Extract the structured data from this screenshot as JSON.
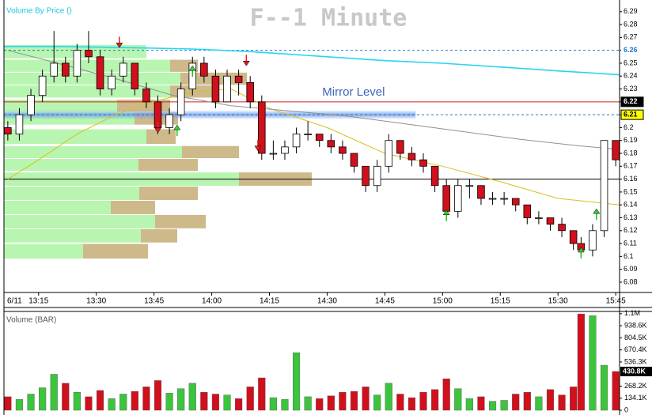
{
  "chart_data": {
    "type": "candlestick",
    "title": "F--1 Minute",
    "vbp_label": "Volume By Price ()",
    "volume_label": "Volume (BAR)",
    "date_label": "6/11",
    "xlim": [
      786,
      946
    ],
    "xticks": [
      {
        "value": 795,
        "label": "13:15"
      },
      {
        "value": 810,
        "label": "13:30"
      },
      {
        "value": 825,
        "label": "13:45"
      },
      {
        "value": 840,
        "label": "14:00"
      },
      {
        "value": 855,
        "label": "14:15"
      },
      {
        "value": 870,
        "label": "14:30"
      },
      {
        "value": 885,
        "label": "14:45"
      },
      {
        "value": 900,
        "label": "15:00"
      },
      {
        "value": 915,
        "label": "15:15"
      },
      {
        "value": 930,
        "label": "15:30"
      },
      {
        "value": 945,
        "label": "15:45"
      }
    ],
    "ylim": [
      6.072,
      6.296
    ],
    "yticks": [
      6.08,
      6.09,
      6.1,
      6.11,
      6.12,
      6.13,
      6.14,
      6.15,
      6.16,
      6.17,
      6.18,
      6.19,
      6.2,
      6.21,
      6.22,
      6.23,
      6.24,
      6.25,
      6.26,
      6.27,
      6.28,
      6.29
    ],
    "up_color": "#ffffff",
    "down_color": "#d0101c",
    "x": [
      787,
      790,
      793,
      796,
      799,
      802,
      805,
      808,
      811,
      814,
      817,
      820,
      823,
      826,
      829,
      832,
      835,
      838,
      841,
      844,
      847,
      850,
      853,
      856,
      859,
      862,
      865,
      868,
      871,
      874,
      877,
      880,
      883,
      886,
      889,
      892,
      895,
      898,
      901,
      904,
      907,
      910,
      913,
      916,
      919,
      922,
      925,
      928,
      931,
      934,
      936,
      939,
      942,
      945
    ],
    "open": [
      6.2,
      6.195,
      6.21,
      6.225,
      6.24,
      6.25,
      6.24,
      6.26,
      6.255,
      6.23,
      6.24,
      6.25,
      6.23,
      6.22,
      6.2,
      6.21,
      6.23,
      6.25,
      6.24,
      6.22,
      6.24,
      6.235,
      6.22,
      6.18,
      6.18,
      6.185,
      6.195,
      6.195,
      6.19,
      6.185,
      6.18,
      6.17,
      6.155,
      6.17,
      6.19,
      6.18,
      6.175,
      6.17,
      6.155,
      6.135,
      6.155,
      6.155,
      6.145,
      6.145,
      6.145,
      6.14,
      6.13,
      6.13,
      6.125,
      6.12,
      6.11,
      6.105,
      6.12,
      6.19
    ],
    "high": [
      6.205,
      6.215,
      6.23,
      6.245,
      6.275,
      6.255,
      6.265,
      6.275,
      6.26,
      6.245,
      6.255,
      6.25,
      6.235,
      6.225,
      6.215,
      6.235,
      6.255,
      6.255,
      6.245,
      6.245,
      6.245,
      6.24,
      6.225,
      6.19,
      6.19,
      6.2,
      6.205,
      6.195,
      6.195,
      6.19,
      6.18,
      6.17,
      6.175,
      6.195,
      6.19,
      6.185,
      6.18,
      6.17,
      6.16,
      6.16,
      6.16,
      6.155,
      6.15,
      6.15,
      6.145,
      6.14,
      6.135,
      6.13,
      6.13,
      6.12,
      6.115,
      6.125,
      6.19,
      6.19
    ],
    "low": [
      6.19,
      6.19,
      6.205,
      6.22,
      6.235,
      6.235,
      6.235,
      6.25,
      6.225,
      6.225,
      6.235,
      6.225,
      6.215,
      6.195,
      6.195,
      6.205,
      6.225,
      6.235,
      6.215,
      6.22,
      6.225,
      6.215,
      6.175,
      6.175,
      6.175,
      6.18,
      6.19,
      6.185,
      6.18,
      6.175,
      6.165,
      6.15,
      6.15,
      6.165,
      6.175,
      6.17,
      6.165,
      6.15,
      6.13,
      6.13,
      6.145,
      6.14,
      6.14,
      6.14,
      6.135,
      6.125,
      6.125,
      6.12,
      6.115,
      6.105,
      6.1,
      6.1,
      6.115,
      6.17
    ],
    "close": [
      6.195,
      6.21,
      6.225,
      6.24,
      6.25,
      6.24,
      6.26,
      6.255,
      6.23,
      6.24,
      6.25,
      6.23,
      6.22,
      6.2,
      6.21,
      6.23,
      6.25,
      6.24,
      6.22,
      6.24,
      6.235,
      6.22,
      6.18,
      6.18,
      6.185,
      6.195,
      6.195,
      6.19,
      6.185,
      6.18,
      6.17,
      6.155,
      6.17,
      6.19,
      6.18,
      6.175,
      6.17,
      6.155,
      6.135,
      6.155,
      6.155,
      6.145,
      6.145,
      6.145,
      6.14,
      6.13,
      6.13,
      6.125,
      6.12,
      6.11,
      6.105,
      6.12,
      6.19,
      6.175
    ],
    "volume": [
      150000,
      120000,
      180000,
      250000,
      400000,
      300000,
      200000,
      150000,
      220000,
      130000,
      180000,
      210000,
      260000,
      330000,
      190000,
      240000,
      300000,
      200000,
      180000,
      170000,
      130000,
      260000,
      360000,
      140000,
      120000,
      640000,
      150000,
      130000,
      160000,
      200000,
      210000,
      260000,
      170000,
      300000,
      180000,
      140000,
      200000,
      230000,
      350000,
      240000,
      130000,
      150000,
      100000,
      110000,
      180000,
      200000,
      150000,
      230000,
      170000,
      260000,
      1070000,
      1050000,
      500000,
      430800
    ],
    "volume_ylim": [
      0,
      1080000
    ],
    "volume_yticks": [
      0,
      {
        "value": 134100,
        "label": "134.1K"
      },
      {
        "value": 268200,
        "label": "268.2K"
      },
      {
        "value": 536300,
        "label": "536.3K"
      },
      {
        "value": 670400,
        "label": "670.4K"
      },
      {
        "value": 804500,
        "label": "804.5K"
      },
      {
        "value": 938600,
        "label": "938.6K"
      },
      {
        "value": 1072700,
        "label": "1.1M"
      }
    ],
    "volume_up_color": "#3cc43c",
    "volume_down_color": "#d0101c",
    "last_volume": {
      "value": 430800,
      "label": "430.8K"
    },
    "vbp": {
      "prices": [
        6.259,
        6.248,
        6.238,
        6.228,
        6.217,
        6.207,
        6.193,
        6.181,
        6.171,
        6.16,
        6.149,
        6.138,
        6.127,
        6.116,
        6.104
      ],
      "up": [
        180,
        210,
        223,
        210,
        143,
        165,
        180,
        225,
        170,
        297,
        171,
        135,
        191,
        173,
        100
      ],
      "down": [
        0,
        35,
        84,
        60,
        67,
        55,
        37,
        72,
        75,
        92,
        74,
        56,
        64,
        46,
        82
      ],
      "xlim": [
        0,
        778
      ],
      "up_color": "#b8f5b0",
      "down_color": "#cdb98a"
    },
    "lines": [
      {
        "color": "#27d6ee",
        "x": [
          786,
          800,
          820,
          835,
          850,
          870,
          885,
          900,
          915,
          930,
          946
        ],
        "values": [
          6.263,
          6.263,
          6.262,
          6.261,
          6.259,
          6.255,
          6.252,
          6.25,
          6.247,
          6.244,
          6.241
        ]
      },
      {
        "color": "#d8c020",
        "x": [
          787,
          795,
          805,
          815,
          825,
          835,
          845,
          855,
          870,
          885,
          900,
          915,
          930,
          946
        ],
        "values": [
          6.16,
          6.175,
          6.195,
          6.21,
          6.22,
          6.228,
          6.23,
          6.215,
          6.2,
          6.18,
          6.17,
          6.158,
          6.145,
          6.14
        ]
      },
      {
        "color": "#909090",
        "x": [
          787,
          800,
          815,
          830,
          845,
          860,
          875,
          890,
          905,
          920,
          935,
          946
        ],
        "values": [
          6.26,
          6.25,
          6.238,
          6.225,
          6.217,
          6.213,
          6.209,
          6.203,
          6.197,
          6.191,
          6.186,
          6.183
        ]
      }
    ],
    "levels": [
      {
        "price": 6.26,
        "color": "#1e78d0",
        "style": "dashed",
        "label_bg": "#ffffff"
      },
      {
        "price": 6.22,
        "color": "#d02020",
        "style": "solid",
        "label_bg": "#000000"
      },
      {
        "price": 6.21,
        "color": "#1e78d0",
        "style": "dashed",
        "label_bg": "#ffff00"
      },
      {
        "price": 6.16,
        "color": "#000000",
        "style": "solid"
      }
    ],
    "mirror": {
      "label": "Mirror Level",
      "price": 6.21,
      "x_end": 893,
      "color": "#6f9ee8"
    },
    "signals": [
      {
        "x": 816,
        "price": 6.262,
        "dir": "down"
      },
      {
        "x": 826,
        "price": 6.196,
        "dir": "down"
      },
      {
        "x": 831,
        "price": 6.202,
        "dir": "up"
      },
      {
        "x": 835,
        "price": 6.248,
        "dir": "up"
      },
      {
        "x": 849,
        "price": 6.248,
        "dir": "down"
      },
      {
        "x": 852,
        "price": 6.182,
        "dir": "down"
      },
      {
        "x": 901,
        "price": 6.136,
        "dir": "up"
      },
      {
        "x": 936,
        "price": 6.107,
        "dir": "up"
      },
      {
        "x": 940,
        "price": 6.137,
        "dir": "up"
      }
    ]
  }
}
